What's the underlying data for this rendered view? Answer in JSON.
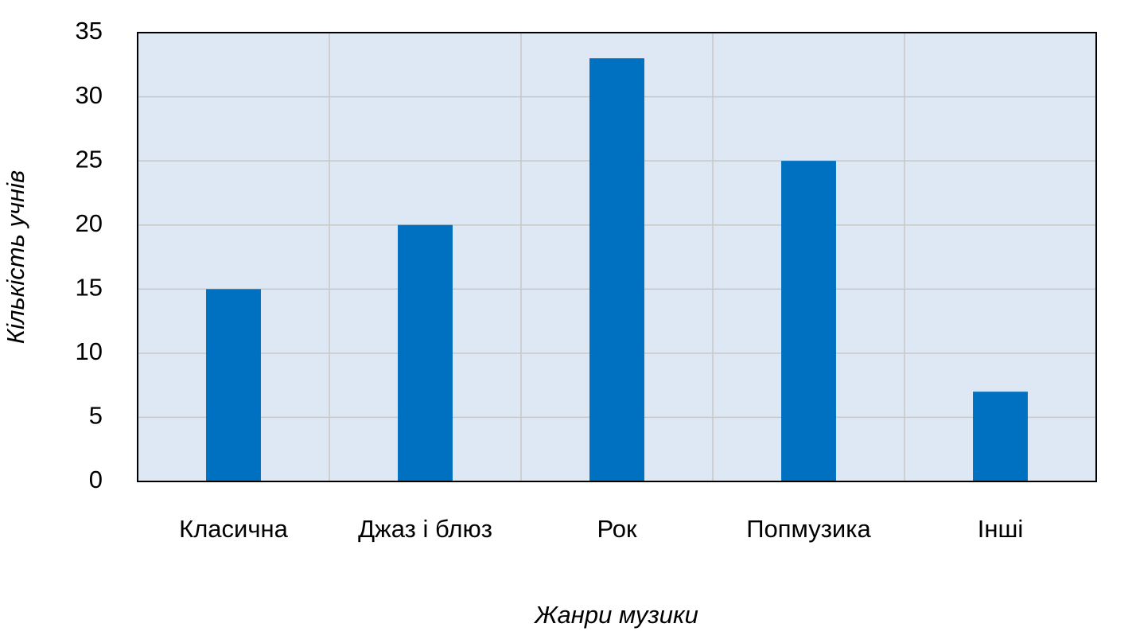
{
  "chart_data": {
    "type": "bar",
    "x_label": "Жанри музики",
    "y_label": "Кількість учнів",
    "categories": [
      "Класична",
      "Джаз і блюз",
      "Рок",
      "Попмузика",
      "Інші"
    ],
    "values": [
      15,
      20,
      33,
      25,
      7
    ],
    "color": "#0070c0",
    "ylim": [
      0,
      35
    ],
    "yticks": [
      0,
      5,
      10,
      15,
      20,
      25,
      30,
      35
    ],
    "grid": true
  }
}
